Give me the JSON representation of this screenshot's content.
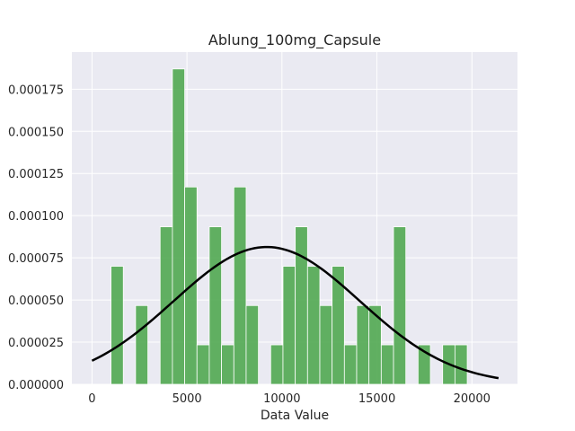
{
  "chart_data": {
    "type": "bar",
    "title": "Ablung_100mg_Capsule",
    "xlabel": "Data Value",
    "ylabel": "",
    "xlim": [
      -1060,
      22400
    ],
    "ylim": [
      0,
      0.000197
    ],
    "xticks": [
      0,
      5000,
      10000,
      15000,
      20000
    ],
    "xtick_labels": [
      "0",
      "5000",
      "10000",
      "15000",
      "20000"
    ],
    "yticks": [
      0,
      2.5e-05,
      5e-05,
      7.5e-05,
      0.0001,
      0.000125,
      0.00015,
      0.000175
    ],
    "ytick_labels": [
      "0.000000",
      "0.000025",
      "0.000050",
      "0.000075",
      "0.000100",
      "0.000125",
      "0.000150",
      "0.000175"
    ],
    "grid": true,
    "background": "#eaeaf2",
    "bar_color": "#4ca64c",
    "curve_color": "#000000",
    "histogram": {
      "bin_edges": [
        1000,
        1646.67,
        2293.33,
        2940,
        3586.67,
        4233.33,
        4880,
        5526.67,
        6173.33,
        6820,
        7466.67,
        8113.33,
        8760,
        9406.67,
        10053.33,
        10700,
        11346.67,
        11993.33,
        12640,
        13286.67,
        13933.33,
        14580,
        15226.67,
        15873.33,
        16520,
        17166.67,
        17813.33,
        18460,
        19106.67,
        19753.33,
        20400
      ],
      "densities": [
        7e-05,
        0,
        4.67e-05,
        0,
        9.34e-05,
        0.000187,
        0.000117,
        2.34e-05,
        9.34e-05,
        2.34e-05,
        0.000117,
        4.67e-05,
        0,
        2.34e-05,
        7e-05,
        9.34e-05,
        7e-05,
        4.67e-05,
        7e-05,
        2.34e-05,
        4.67e-05,
        4.67e-05,
        2.34e-05,
        9.34e-05,
        0,
        2.34e-05,
        0,
        2.34e-05,
        2.34e-05,
        0
      ]
    },
    "normal_curve": {
      "x_start": 0,
      "x_end": 21400,
      "mean": 9200,
      "std": 4900
    }
  }
}
